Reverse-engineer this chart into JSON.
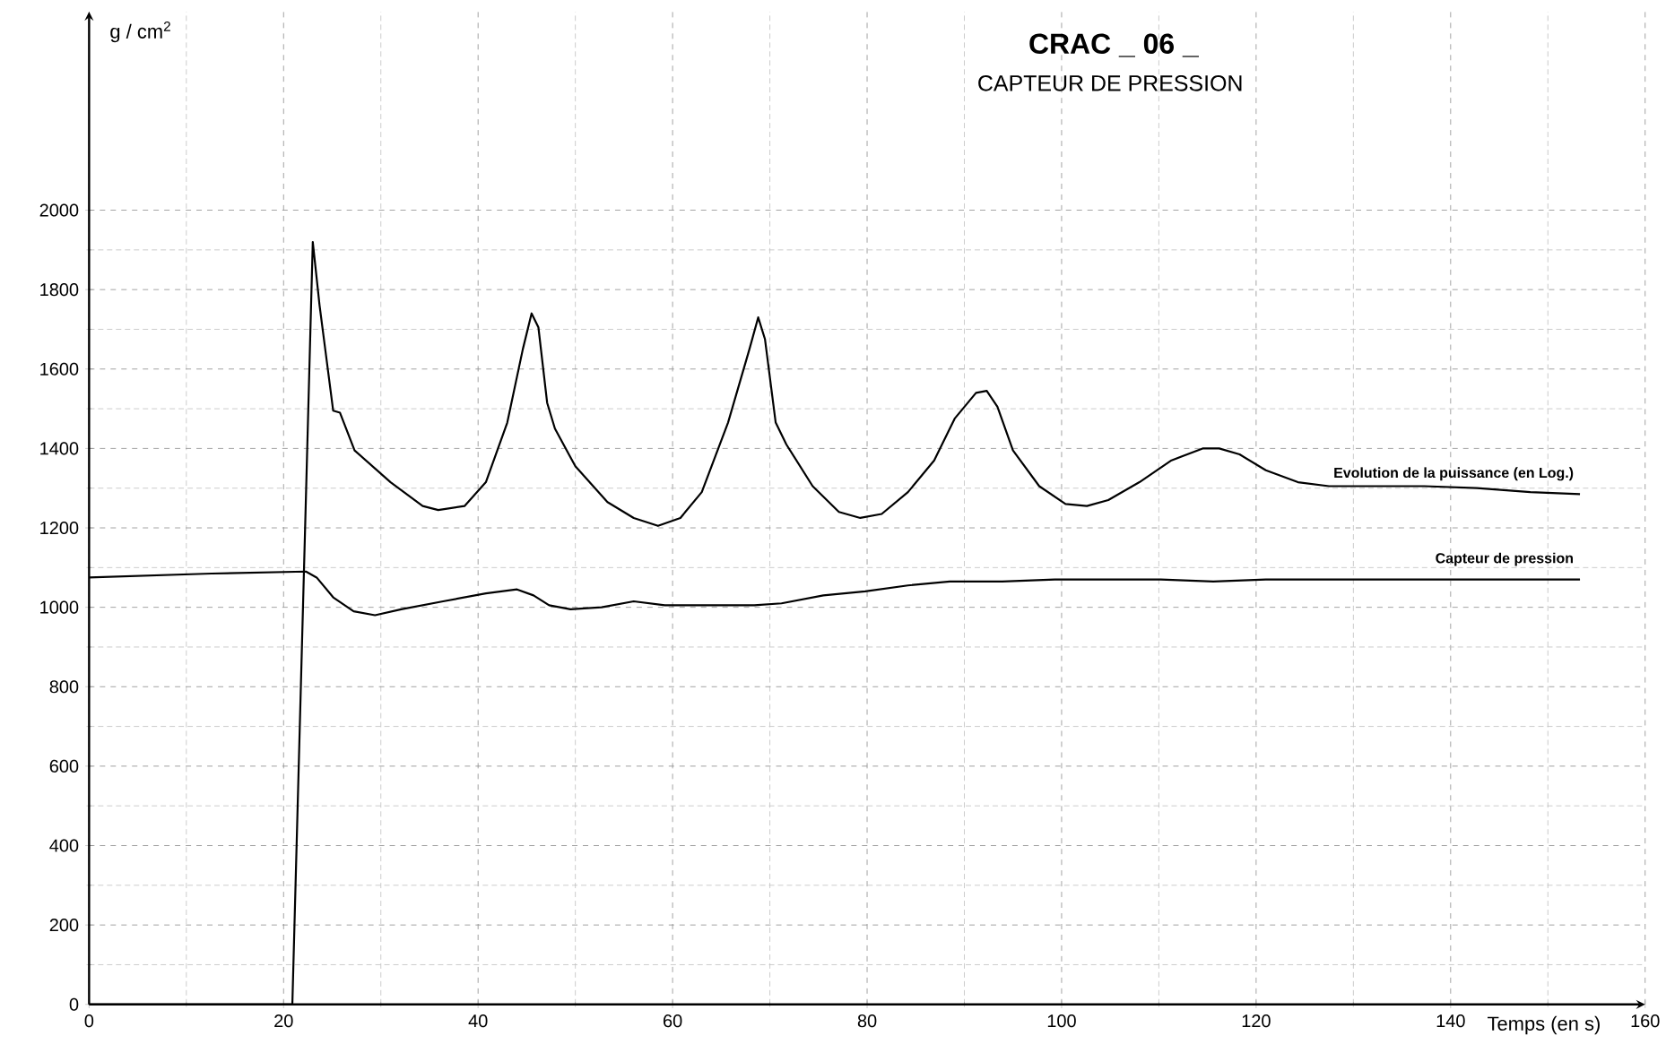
{
  "chart_data": {
    "type": "line",
    "title": "CRAC _ 06 _",
    "subtitle": "CAPTEUR DE PRESSION",
    "xlabel": "Temps (en s)",
    "ylabel": "g / cm$^{2}$",
    "xlim": [
      0,
      160
    ],
    "ylim": [
      0,
      2500
    ],
    "xticks": [
      0,
      20,
      40,
      60,
      80,
      100,
      120,
      140,
      160
    ],
    "yticks": [
      0,
      200,
      400,
      600,
      800,
      1000,
      1200,
      1400,
      1600,
      1800,
      2000
    ],
    "grid": true,
    "marker": "none",
    "line_style": "solid",
    "series": [
      {
        "name": "Evolution de la puissance (en Log.)",
        "color": "#000000",
        "x": [
          0,
          10,
          20.9,
          23,
          23.7,
          25.1,
          25.8,
          27.3,
          31,
          34.3,
          35.9,
          38.6,
          40.8,
          43,
          44.6,
          45.5,
          46.2,
          47.1,
          47.9,
          50,
          53.3,
          56,
          58.5,
          60.8,
          63,
          65.7,
          67.9,
          68.8,
          69.5,
          70.6,
          71.7,
          74.4,
          77.1,
          79.3,
          81.5,
          84.2,
          86.9,
          89,
          91.2,
          92.3,
          93.4,
          95,
          97.7,
          100.4,
          102.6,
          104.8,
          108,
          111.3,
          114.5,
          116.2,
          118.3,
          121,
          124.3,
          127.5,
          131.9,
          137.3,
          142.7,
          148.2,
          153.3
        ],
        "values": [
          0,
          0,
          0,
          1920,
          1760,
          1495,
          1490,
          1395,
          1315,
          1255,
          1245,
          1255,
          1315,
          1465,
          1650,
          1740,
          1705,
          1515,
          1450,
          1355,
          1265,
          1225,
          1205,
          1225,
          1290,
          1465,
          1650,
          1730,
          1675,
          1465,
          1410,
          1305,
          1240,
          1225,
          1235,
          1290,
          1370,
          1475,
          1540,
          1545,
          1505,
          1395,
          1305,
          1260,
          1255,
          1270,
          1315,
          1370,
          1400,
          1400,
          1385,
          1345,
          1315,
          1305,
          1305,
          1305,
          1300,
          1290,
          1285
        ]
      },
      {
        "name": "Capteur de pression",
        "color": "#000000",
        "x": [
          0,
          12.6,
          22.3,
          23.4,
          25.1,
          27.2,
          29.4,
          32.1,
          36.4,
          40.8,
          44,
          45.7,
          47.3,
          49.5,
          52.7,
          56,
          59.2,
          62.5,
          65.7,
          68.4,
          71.2,
          75.5,
          79.8,
          84.2,
          88.5,
          93.9,
          99.3,
          104.8,
          110.2,
          115.6,
          121,
          131.9,
          142.7,
          153.3
        ],
        "values": [
          1075,
          1085,
          1090,
          1075,
          1025,
          990,
          980,
          995,
          1015,
          1035,
          1045,
          1030,
          1005,
          995,
          1000,
          1015,
          1005,
          1005,
          1005,
          1005,
          1010,
          1030,
          1040,
          1055,
          1065,
          1065,
          1070,
          1070,
          1070,
          1065,
          1070,
          1070,
          1070,
          1070
        ]
      }
    ]
  }
}
